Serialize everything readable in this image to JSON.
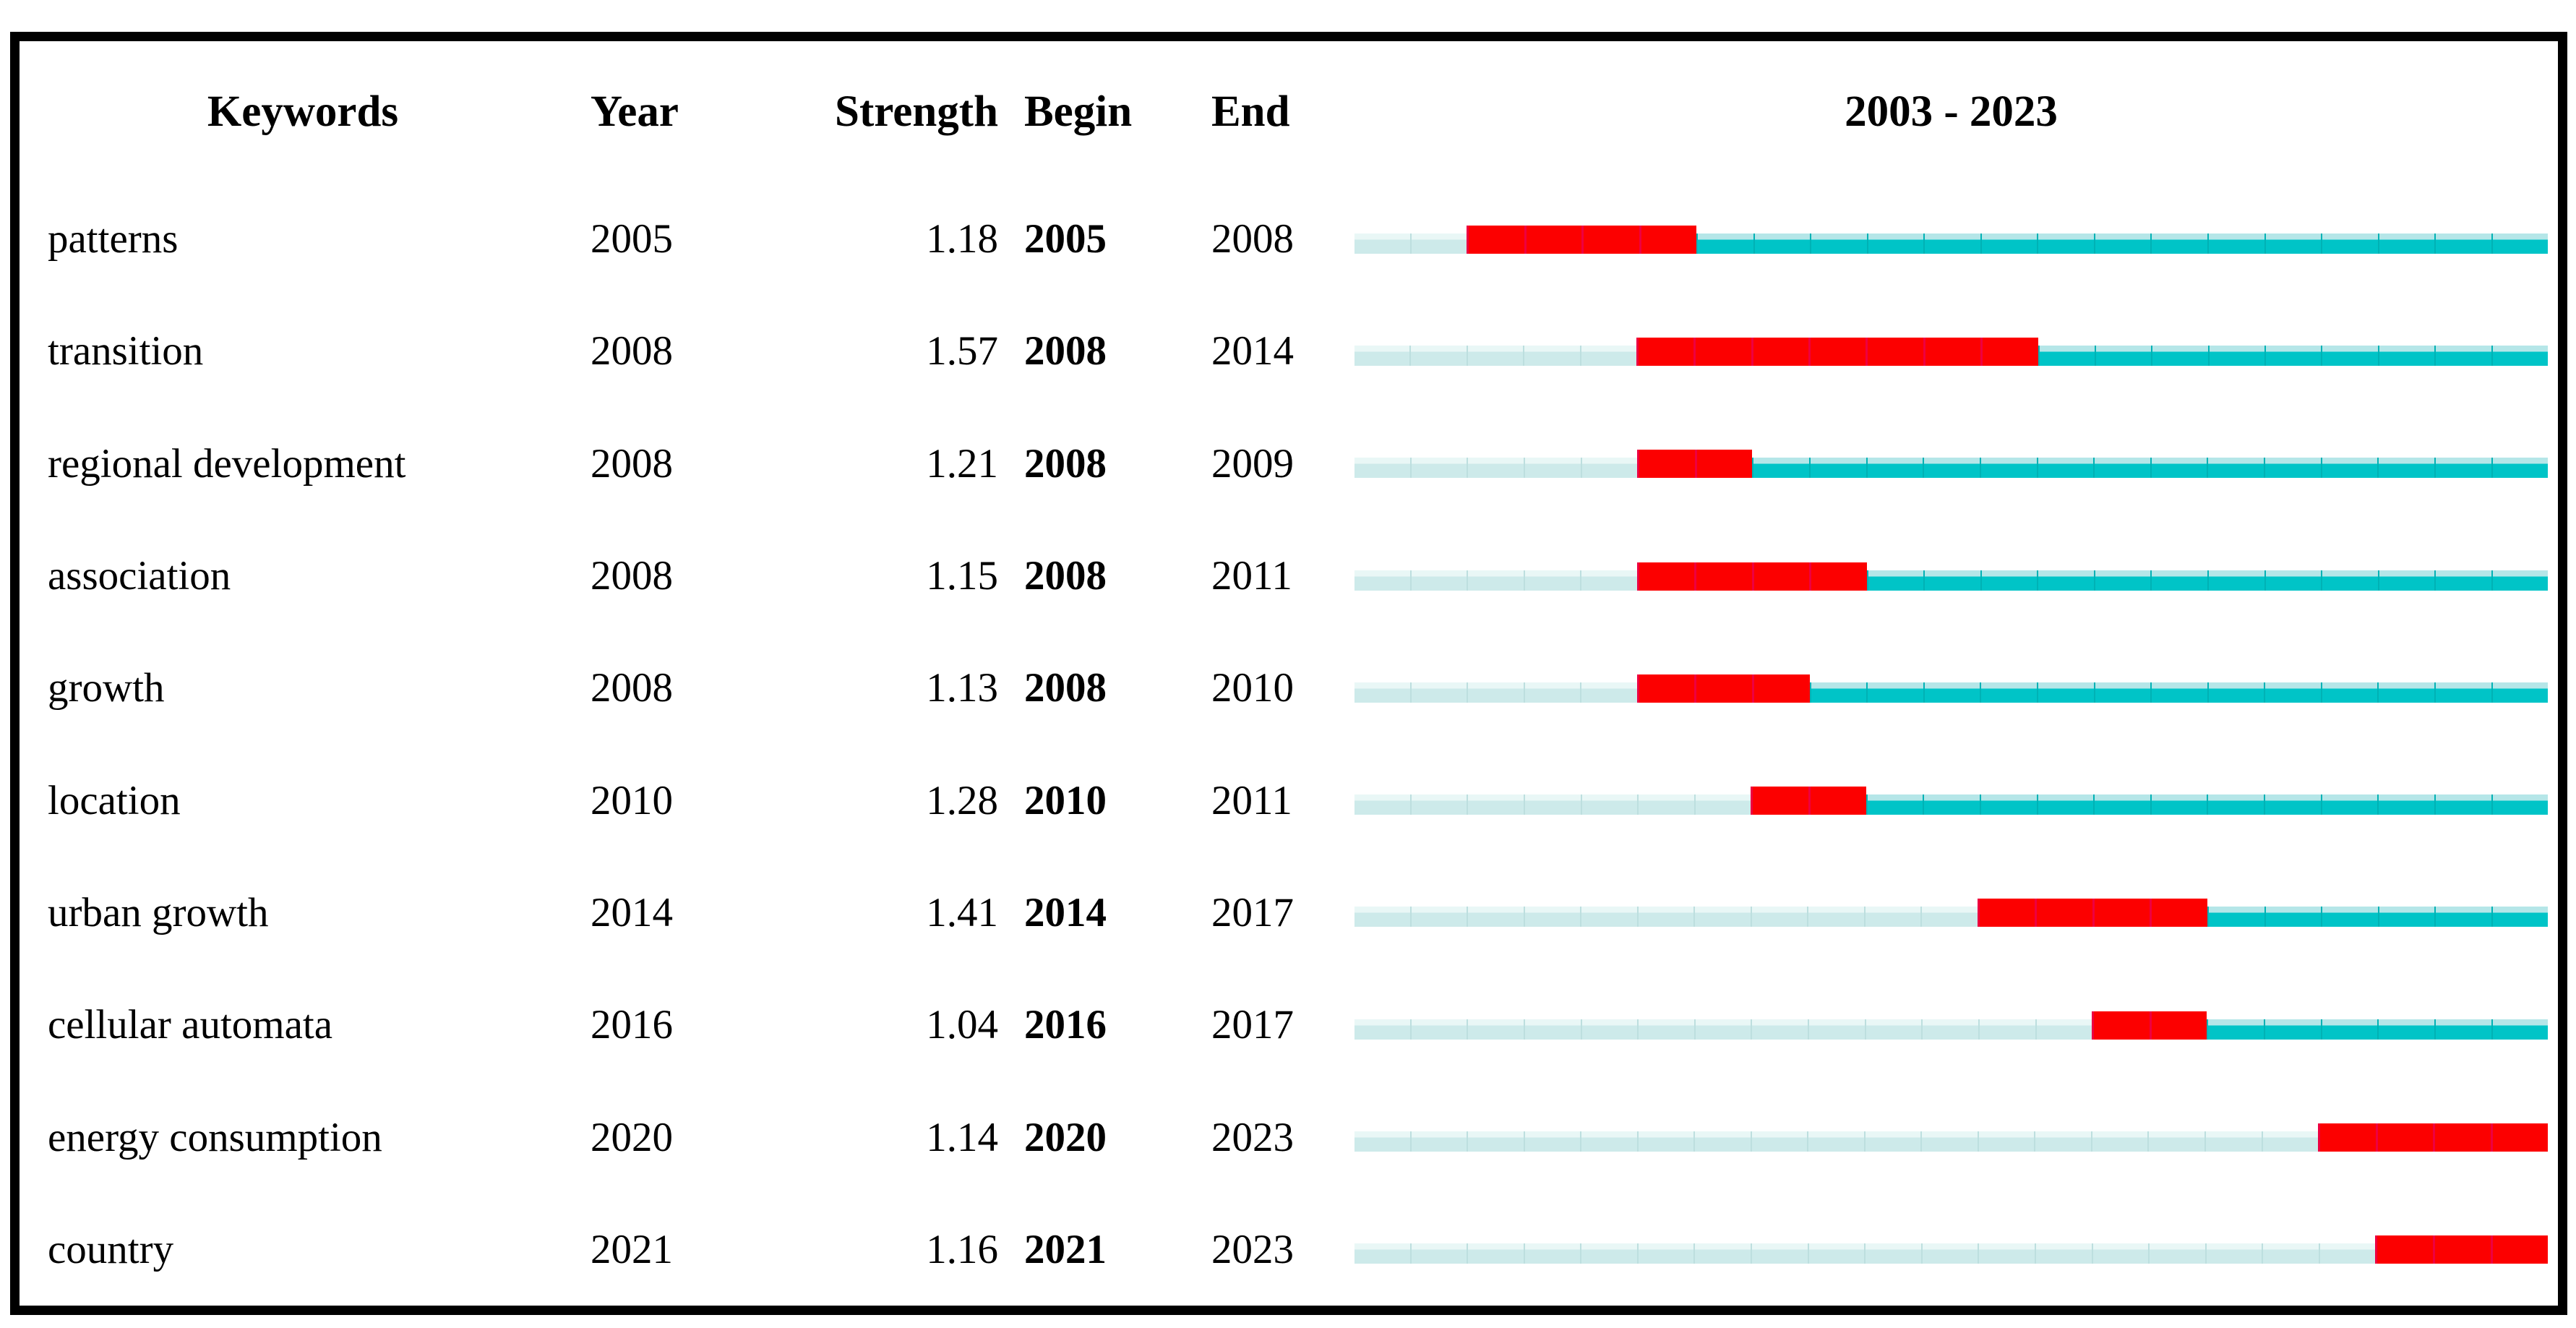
{
  "figure": {
    "header": {
      "keywords": "Keywords",
      "year": "Year",
      "strength": "Strength",
      "begin": "Begin",
      "end": "End",
      "timeline": "2003 - 2023"
    }
  },
  "chart_data": {
    "type": "table",
    "columns": [
      "Keywords",
      "Year",
      "Strength",
      "Begin",
      "End",
      "2003 - 2023"
    ],
    "timeline": {
      "start": 2003,
      "end": 2023,
      "label": "2003 - 2023"
    },
    "legend": {
      "pre_burst_segment": "years before burst",
      "burst_segment": "burst interval (Begin–End)",
      "post_burst_segment": "years after burst"
    },
    "rows": [
      {
        "keyword": "patterns",
        "year": "2005",
        "strength": "1.18",
        "begin": 2005,
        "end": 2008
      },
      {
        "keyword": "transition",
        "year": "2008",
        "strength": "1.57",
        "begin": 2008,
        "end": 2014
      },
      {
        "keyword": "regional development",
        "year": "2008",
        "strength": "1.21",
        "begin": 2008,
        "end": 2009
      },
      {
        "keyword": "association",
        "year": "2008",
        "strength": "1.15",
        "begin": 2008,
        "end": 2011
      },
      {
        "keyword": "growth",
        "year": "2008",
        "strength": "1.13",
        "begin": 2008,
        "end": 2010
      },
      {
        "keyword": "location",
        "year": "2010",
        "strength": "1.28",
        "begin": 2010,
        "end": 2011
      },
      {
        "keyword": "urban growth",
        "year": "2014",
        "strength": "1.41",
        "begin": 2014,
        "end": 2017
      },
      {
        "keyword": "cellular automata",
        "year": "2016",
        "strength": "1.04",
        "begin": 2016,
        "end": 2017
      },
      {
        "keyword": "energy consumption",
        "year": "2020",
        "strength": "1.14",
        "begin": 2020,
        "end": 2023
      },
      {
        "keyword": "country",
        "year": "2021",
        "strength": "1.16",
        "begin": 2021,
        "end": 2023
      }
    ],
    "colors": {
      "pre": "#cdeaea",
      "pre_top": "#e9f7f6",
      "pre_divider": "#bddfdf",
      "burst": "#fc0000",
      "burst_divider": "#ee0040",
      "post": "#00c4c7",
      "post_top": "#b5e6e8",
      "post_divider": "#00b2b5"
    }
  }
}
